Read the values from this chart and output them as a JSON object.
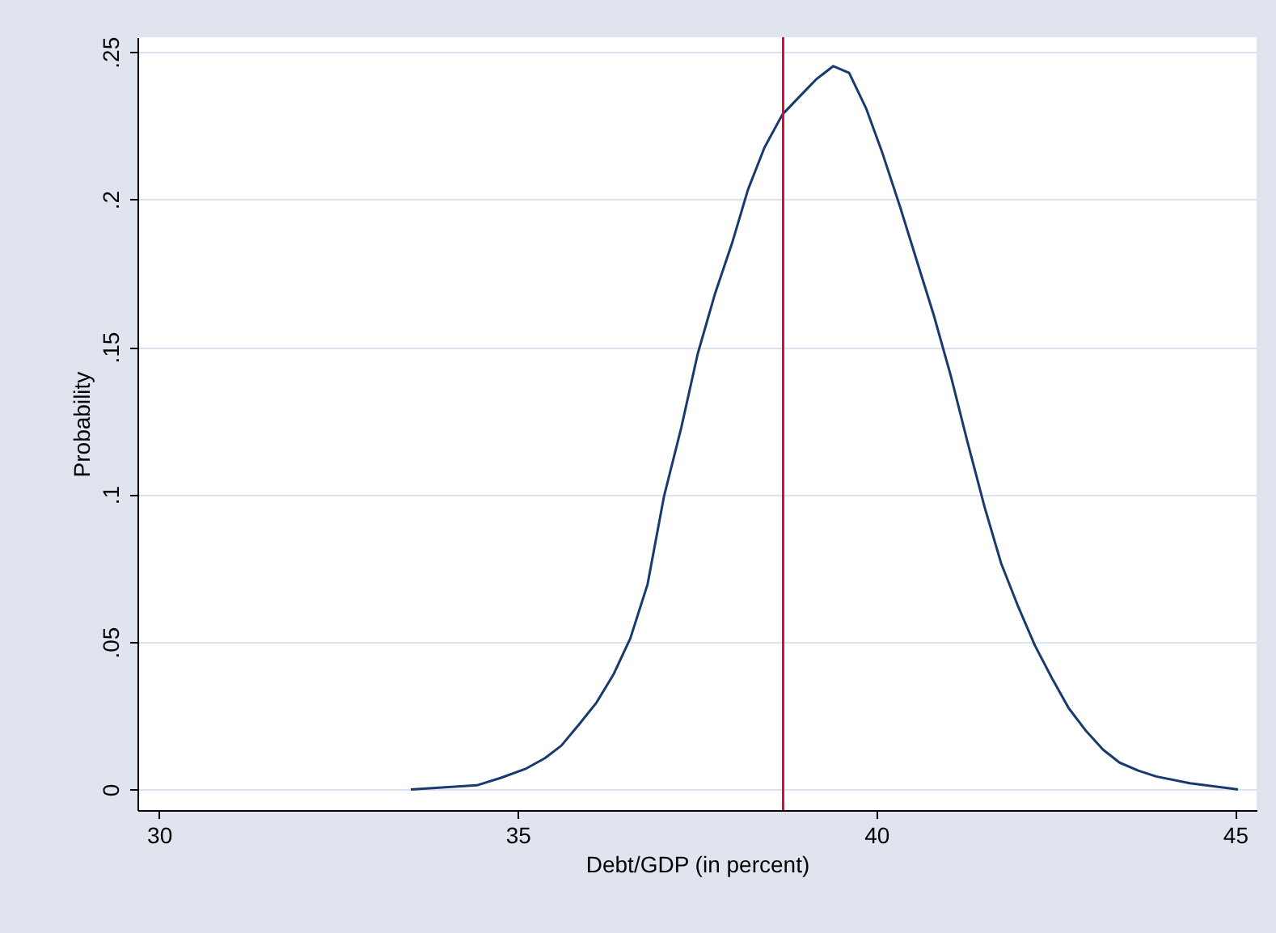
{
  "chart_data": {
    "type": "line",
    "xlabel": "Debt/GDP (in percent)",
    "ylabel": "Probability",
    "x": [
      33.51,
      34.43,
      34.76,
      35.12,
      35.38,
      35.61,
      35.86,
      36.1,
      36.34,
      36.57,
      36.81,
      37.04,
      37.28,
      37.51,
      37.75,
      37.99,
      38.21,
      38.44,
      38.69,
      38.93,
      39.16,
      39.4,
      39.62,
      39.86,
      40.09,
      40.33,
      40.56,
      40.8,
      41.04,
      41.27,
      41.51,
      41.74,
      41.98,
      42.21,
      42.45,
      42.68,
      42.92,
      43.16,
      43.39,
      43.65,
      43.9,
      44.37,
      45.04
    ],
    "series": [
      {
        "color": "#1a3a6e",
        "values": [
          0,
          0.0014,
          0.0039,
          0.0071,
          0.0106,
          0.0149,
          0.0222,
          0.0295,
          0.0392,
          0.0512,
          0.0695,
          0.0994,
          0.1226,
          0.1477,
          0.168,
          0.1853,
          0.2033,
          0.2176,
          0.2288,
          0.2349,
          0.2407,
          0.2452,
          0.2429,
          0.2307,
          0.2153,
          0.1975,
          0.1795,
          0.1608,
          0.14,
          0.1178,
          0.0956,
          0.0766,
          0.0618,
          0.0488,
          0.0376,
          0.0276,
          0.0199,
          0.0135,
          0.0091,
          0.0064,
          0.0044,
          0.0021,
          0
        ]
      }
    ],
    "xlim": [
      29.7,
      45.3
    ],
    "xticks": [
      30,
      35,
      40,
      45
    ],
    "ylim": [
      -0.007,
      0.255
    ],
    "yticks": [
      {
        "value": 0,
        "label": "0"
      },
      {
        "value": 0.05,
        "label": ".05"
      },
      {
        "value": 0.1,
        "label": ".1"
      },
      {
        "value": 0.15,
        "label": ".15"
      },
      {
        "value": 0.2,
        "label": ".2"
      },
      {
        "value": 0.25,
        "label": ".25"
      }
    ],
    "ref_lines": [
      {
        "axis": "x",
        "value": 38.7,
        "color": "#d0103a"
      }
    ],
    "grid": "y",
    "marker": "none",
    "line_style": "solid"
  }
}
